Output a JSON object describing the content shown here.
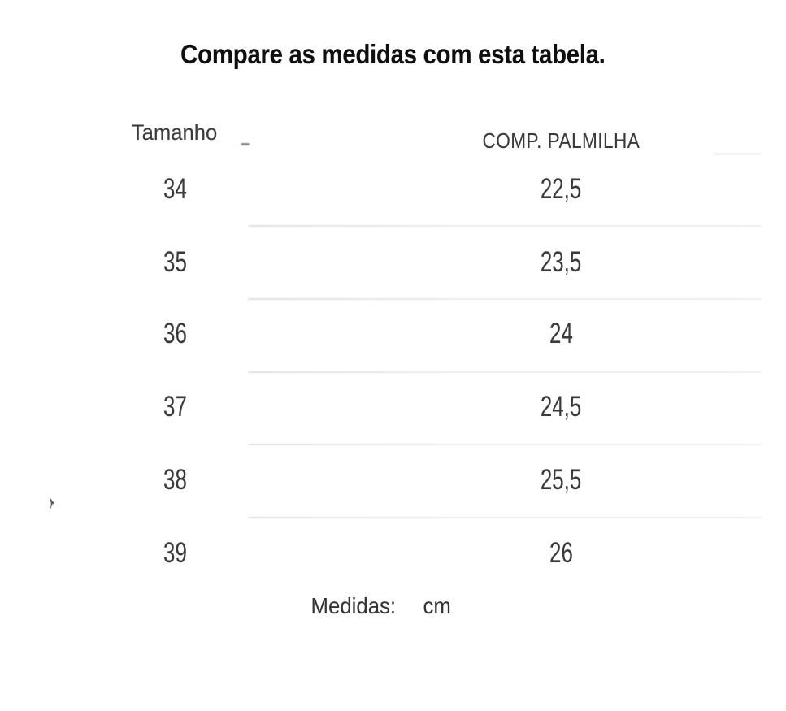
{
  "page": {
    "title": "Compare as medidas com esta tabela."
  },
  "table": {
    "headers": {
      "size": "Tamanho",
      "length": "COMP. PALMILHA"
    },
    "rows": [
      {
        "size": "34",
        "length": "22,5"
      },
      {
        "size": "35",
        "length": "23,5"
      },
      {
        "size": "36",
        "length": "24"
      },
      {
        "size": "37",
        "length": "24,5"
      },
      {
        "size": "38",
        "length": "25,5"
      },
      {
        "size": "39",
        "length": "26"
      }
    ]
  },
  "footer": {
    "label": "Medidas:",
    "unit": "cm"
  }
}
